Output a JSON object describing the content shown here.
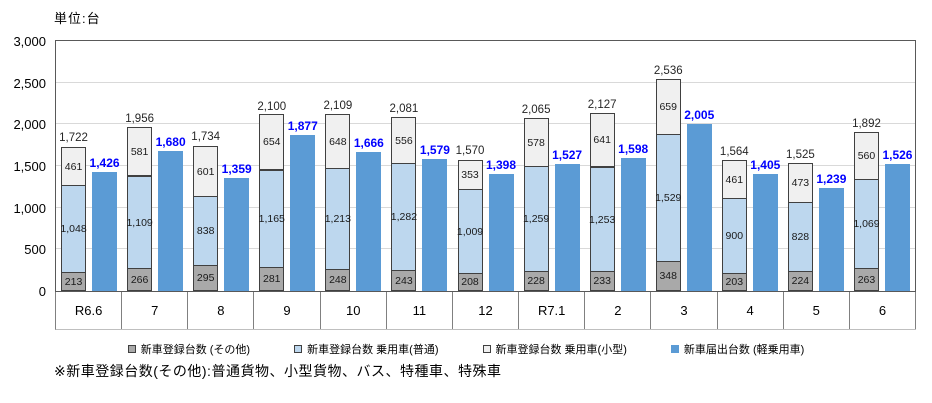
{
  "unit_label": "単位:台",
  "footnote": "※新車登録台数(その他):普通貨物、小型貨物、バス、特種車、特殊車",
  "colors": {
    "other_gray": "#A9A9A9",
    "ordinary_lightblue": "#BDD7EE",
    "small_white": "#F0F0F0",
    "kei_blue": "#5B9BD5",
    "kei_label_blue": "#0000FF",
    "segment_border": "#404040",
    "gridline": "#D9D9D9",
    "axis_border": "#595959"
  },
  "chart_data": {
    "type": "bar",
    "subtype": "stacked-registration-plus-grouped-kei-bar",
    "categories": [
      "R6.6",
      "7",
      "8",
      "9",
      "10",
      "11",
      "12",
      "R7.1",
      "2",
      "3",
      "4",
      "5",
      "6"
    ],
    "series": [
      {
        "name": "新車登録台数 (その他)",
        "stack": "registration",
        "color": "#A9A9A9",
        "marker_border": "#404040",
        "values": [
          213,
          266,
          295,
          281,
          248,
          243,
          208,
          228,
          233,
          348,
          203,
          224,
          263
        ]
      },
      {
        "name": "新車登録台数 乗用車(普通)",
        "stack": "registration",
        "color": "#BDD7EE",
        "marker_border": "#404040",
        "values": [
          1048,
          1109,
          838,
          1165,
          1213,
          1282,
          1009,
          1259,
          1253,
          1529,
          900,
          828,
          1069
        ]
      },
      {
        "name": "新車登録台数 乗用車(小型)",
        "stack": "registration",
        "color": "#F0F0F0",
        "marker_border": "#404040",
        "values": [
          461,
          581,
          601,
          654,
          648,
          556,
          353,
          578,
          641,
          659,
          461,
          473,
          560
        ]
      },
      {
        "name": "新車届出台数 (軽乗用車)",
        "stack": null,
        "color": "#5B9BD5",
        "marker_border": "none",
        "values": [
          1426,
          1680,
          1359,
          1877,
          1666,
          1579,
          1398,
          1527,
          1598,
          2005,
          1405,
          1239,
          1526
        ]
      }
    ],
    "stack_totals": [
      1722,
      1956,
      1734,
      2100,
      2109,
      2081,
      1570,
      2065,
      2127,
      2536,
      1564,
      1525,
      1892
    ],
    "title": "",
    "xlabel": "",
    "ylabel": "単位:台",
    "ylim": [
      0,
      3000
    ],
    "ytick_step": 500,
    "grid": true,
    "legend_position": "bottom"
  }
}
